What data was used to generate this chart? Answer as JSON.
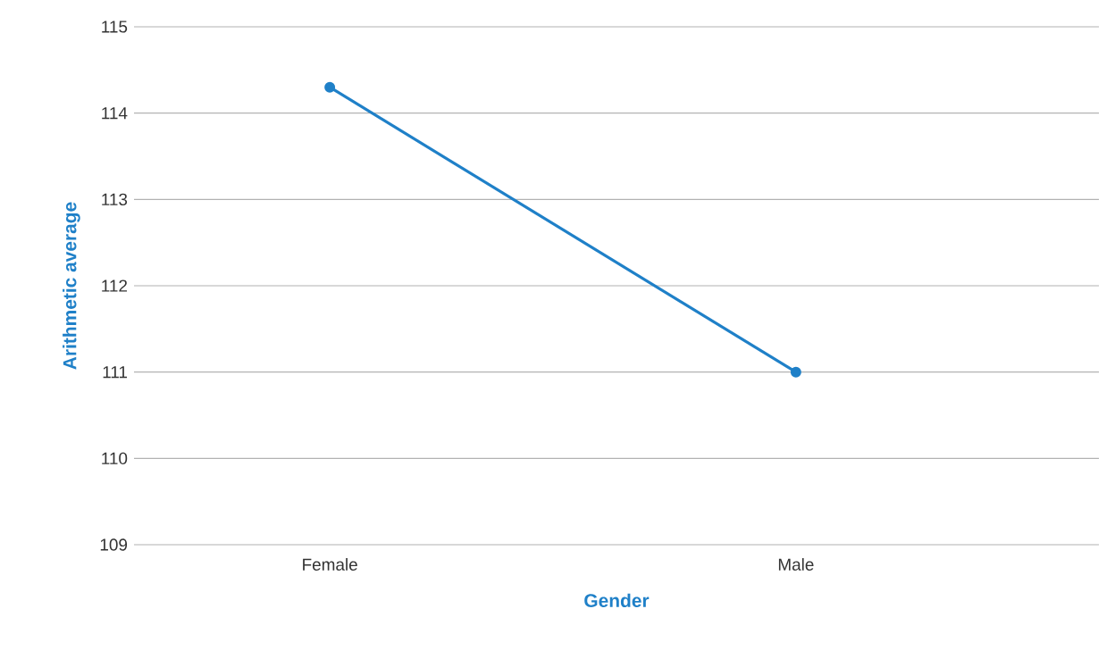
{
  "chart_data": {
    "type": "line",
    "xlabel": "Gender",
    "ylabel": "Arithmetic average",
    "categories": [
      "Female",
      "Male"
    ],
    "series": [
      {
        "color": "#1f80c8",
        "values": [
          114.3,
          111.0
        ]
      }
    ],
    "ylim": [
      109,
      115
    ],
    "yticks": [
      109,
      110,
      111,
      112,
      113,
      114,
      115
    ],
    "grid": "y",
    "marker": "circle"
  }
}
